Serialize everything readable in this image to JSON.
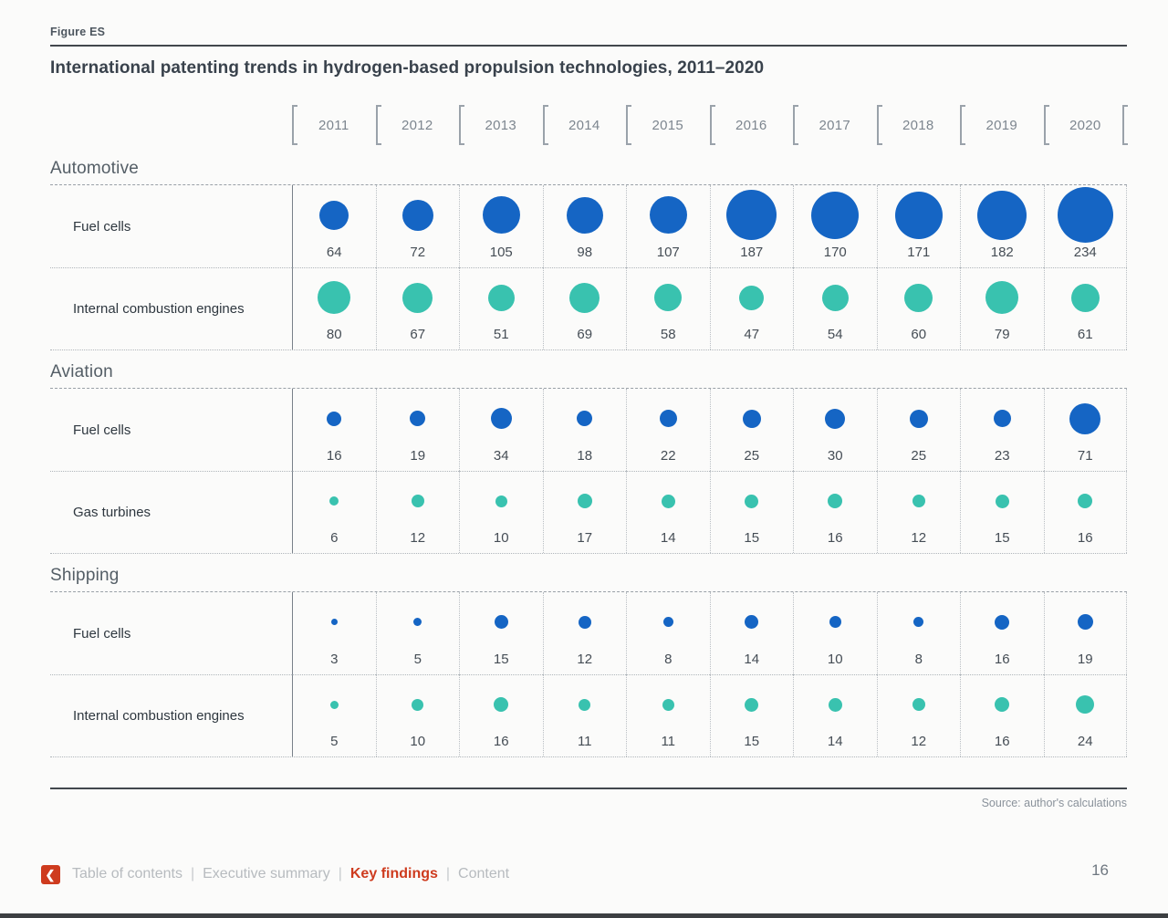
{
  "page": {
    "figure_label": "Figure ES",
    "title": "International patenting trends in hydrogen-based propulsion technologies, 2011–2020",
    "source": "Source: author's calculations",
    "page_number": "16"
  },
  "colors": {
    "fuel_cells_blue": "#1565c4",
    "teal": "#39c2af",
    "accent_red": "#ce3b1e"
  },
  "footer": {
    "nav": [
      {
        "label": "Table of contents",
        "active": false
      },
      {
        "label": "Executive summary",
        "active": false
      },
      {
        "label": "Key findings",
        "active": true
      },
      {
        "label": "Content",
        "active": false
      }
    ],
    "back_chevron": "❮"
  },
  "chart_data": {
    "type": "bubble-matrix",
    "title": "International patenting trends in hydrogen-based propulsion technologies, 2011–2020",
    "x_years": [
      "2011",
      "2012",
      "2013",
      "2014",
      "2015",
      "2016",
      "2017",
      "2018",
      "2019",
      "2020"
    ],
    "size_rule": "bubble diameter proportional to sqrt(value), ~4px per sqrt unit",
    "sections": [
      {
        "label": "Automotive",
        "rows": [
          {
            "label": "Fuel cells",
            "series_color": "#1565c4",
            "values": [
              64,
              72,
              105,
              98,
              107,
              187,
              170,
              171,
              182,
              234
            ]
          },
          {
            "label": "Internal combustion engines",
            "series_color": "#39c2af",
            "values": [
              80,
              67,
              51,
              69,
              58,
              47,
              54,
              60,
              79,
              61
            ]
          }
        ]
      },
      {
        "label": "Aviation",
        "rows": [
          {
            "label": "Fuel cells",
            "series_color": "#1565c4",
            "values": [
              16,
              19,
              34,
              18,
              22,
              25,
              30,
              25,
              23,
              71
            ]
          },
          {
            "label": "Gas turbines",
            "series_color": "#39c2af",
            "values": [
              6,
              12,
              10,
              17,
              14,
              15,
              16,
              12,
              15,
              16
            ]
          }
        ]
      },
      {
        "label": "Shipping",
        "rows": [
          {
            "label": "Fuel cells",
            "series_color": "#1565c4",
            "values": [
              3,
              5,
              15,
              12,
              8,
              14,
              10,
              8,
              16,
              19
            ]
          },
          {
            "label": "Internal combustion engines",
            "series_color": "#39c2af",
            "values": [
              5,
              10,
              16,
              11,
              11,
              15,
              14,
              12,
              16,
              24
            ]
          }
        ]
      }
    ]
  }
}
